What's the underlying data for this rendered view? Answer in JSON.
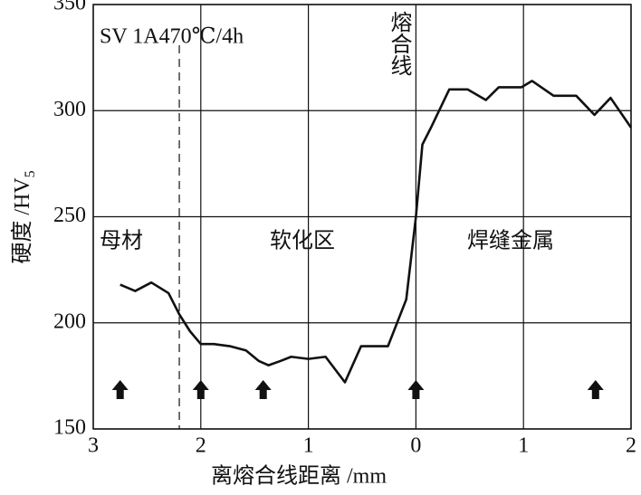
{
  "chart_data": {
    "type": "line",
    "x_label": "离熔合线距离 /mm",
    "y_label": {
      "text": "硬度 /HV",
      "subscript": "5"
    },
    "annotations": {
      "condition": "SV 1A470℃/4h",
      "fusion_line": "熔合线",
      "base_metal": "母材",
      "softened_zone": "软化区",
      "weld_metal": "焊缝金属"
    },
    "xlim": [
      -3,
      2
    ],
    "xticks": [
      {
        "value": -3,
        "label": "3"
      },
      {
        "value": -2,
        "label": "2"
      },
      {
        "value": -1,
        "label": "1"
      },
      0,
      1,
      2
    ],
    "ylim": [
      150,
      350
    ],
    "yticks": [
      150,
      200,
      250,
      300,
      350
    ],
    "grid": true,
    "dashed_x": -2.2,
    "arrows_x": [
      -2.75,
      -2,
      -1.42,
      0,
      1.67
    ],
    "series": [
      {
        "color": "#111111",
        "x": [
          -2.75,
          -2.61,
          -2.46,
          -2.3,
          -2.2,
          -2.1,
          -2.0,
          -1.88,
          -1.73,
          -1.58,
          -1.46,
          -1.37,
          -1.26,
          -1.16,
          -1.0,
          -0.84,
          -0.66,
          -0.51,
          -0.26,
          -0.09,
          0,
          0.06,
          0.14,
          0.31,
          0.48,
          0.65,
          0.77,
          0.98,
          1.08,
          1.28,
          1.49,
          1.66,
          1.81,
          2.0
        ],
        "values": [
          218,
          215,
          219,
          214,
          204,
          196,
          190,
          190,
          189,
          187,
          182,
          180,
          182,
          184,
          183,
          184,
          172,
          189,
          189,
          211,
          250,
          284,
          292,
          310,
          310,
          305,
          311,
          311,
          314,
          307,
          307,
          298,
          306,
          292
        ]
      }
    ]
  }
}
